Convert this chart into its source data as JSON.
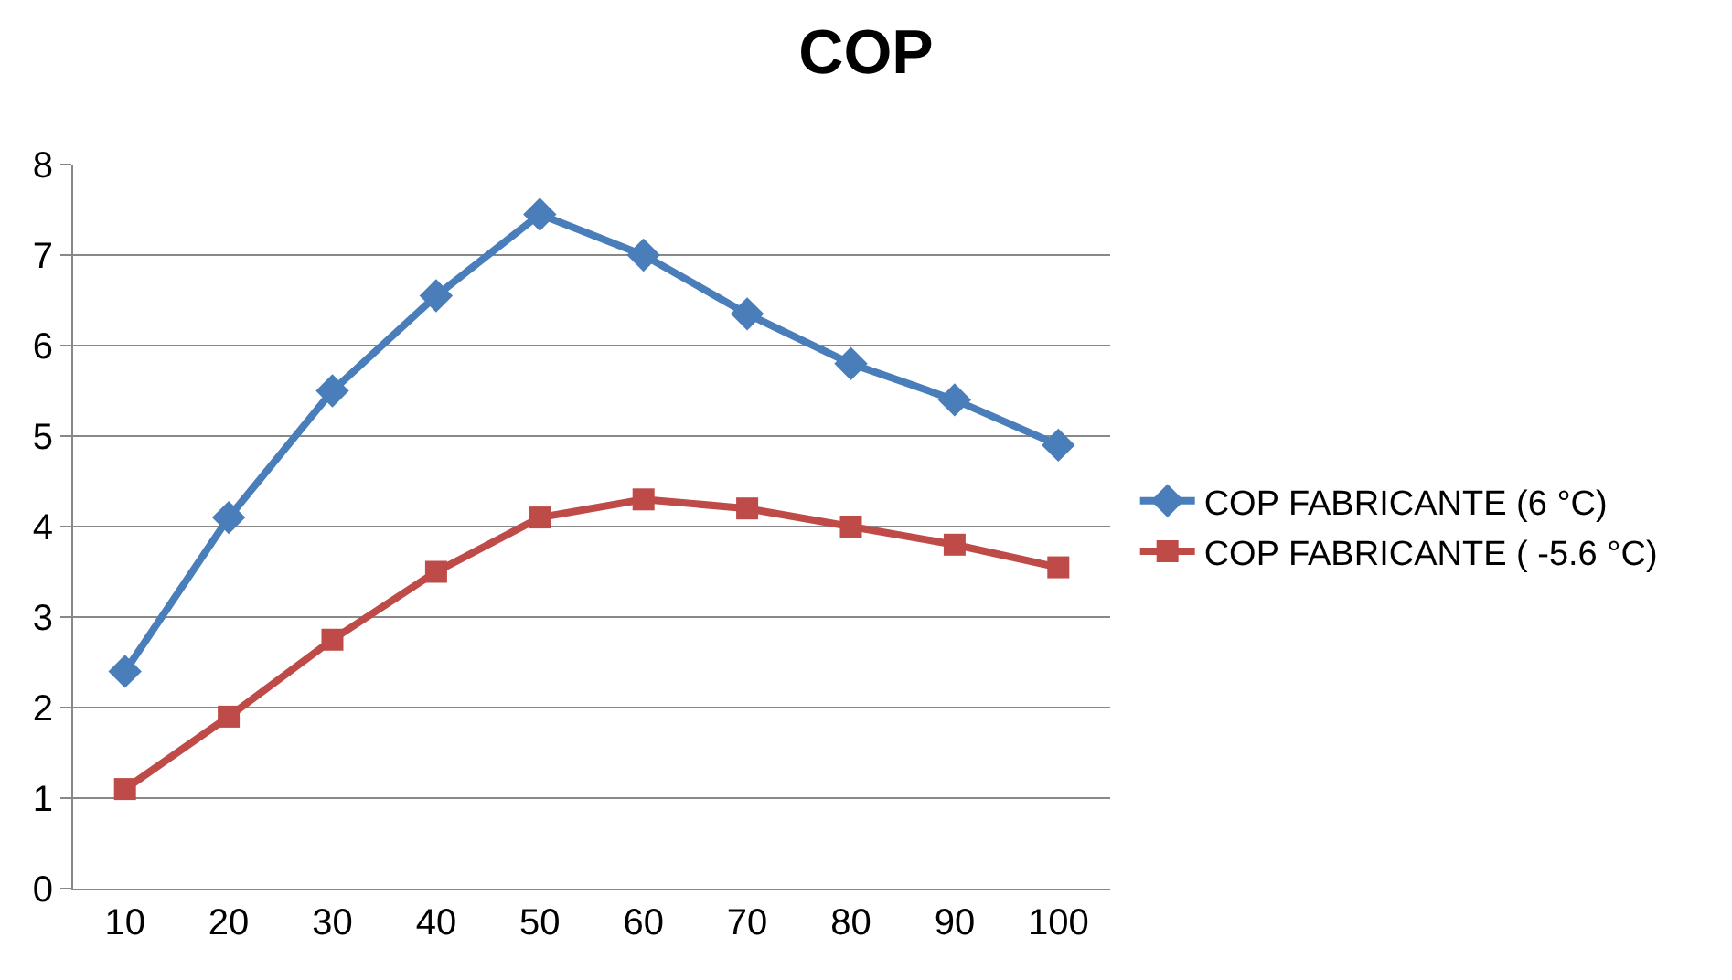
{
  "chart_data": {
    "type": "line",
    "title": "COP",
    "categories": [
      "10",
      "20",
      "30",
      "40",
      "50",
      "60",
      "70",
      "80",
      "90",
      "100"
    ],
    "series": [
      {
        "name": "COP FABRICANTE (6 °C)",
        "color": "#4a7ebb",
        "marker": "diamond",
        "values": [
          2.4,
          4.1,
          5.5,
          6.55,
          7.45,
          7.0,
          6.35,
          5.8,
          5.4,
          4.9
        ]
      },
      {
        "name": "COP FABRICANTE ( -5.6 °C)",
        "color": "#be4b48",
        "marker": "square",
        "values": [
          1.1,
          1.9,
          2.75,
          3.5,
          4.1,
          4.3,
          4.2,
          4.0,
          3.8,
          3.55
        ]
      }
    ],
    "ylim": [
      0,
      8
    ],
    "yticks": [
      0,
      1,
      2,
      3,
      4,
      5,
      6,
      7,
      8
    ],
    "grid": "y",
    "legend": "right",
    "line_style": "solid"
  }
}
